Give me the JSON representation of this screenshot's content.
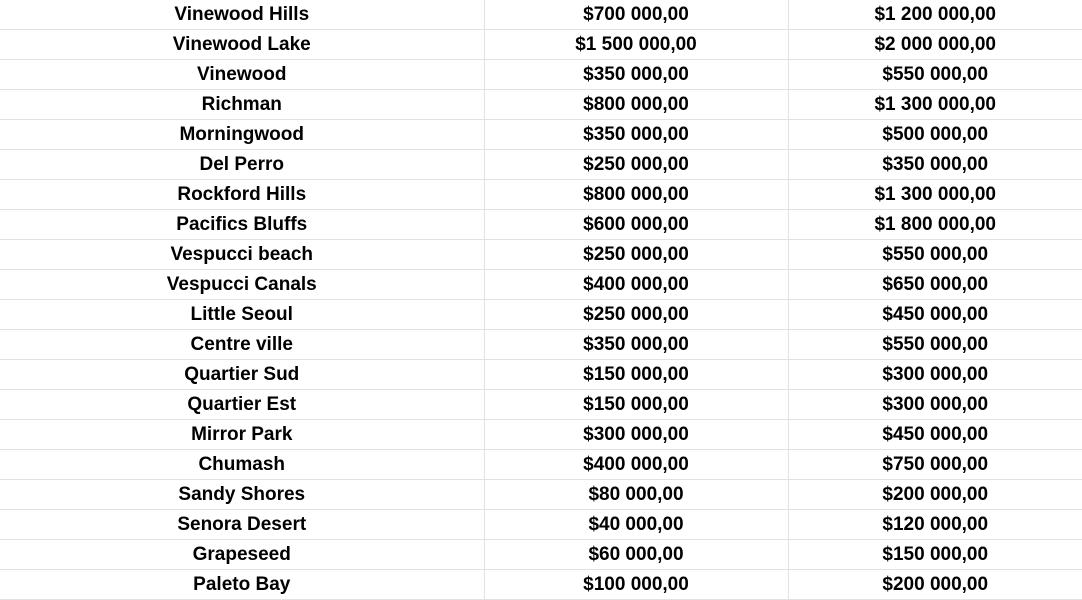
{
  "sheet": {
    "rows": [
      {
        "district": "Vinewood Hills",
        "min_price": "$700 000,00",
        "max_price": "$1 200 000,00"
      },
      {
        "district": "Vinewood Lake",
        "min_price": "$1 500 000,00",
        "max_price": "$2 000 000,00"
      },
      {
        "district": "Vinewood",
        "min_price": "$350 000,00",
        "max_price": "$550 000,00"
      },
      {
        "district": "Richman",
        "min_price": "$800 000,00",
        "max_price": "$1 300 000,00"
      },
      {
        "district": "Morningwood",
        "min_price": "$350 000,00",
        "max_price": "$500 000,00"
      },
      {
        "district": "Del Perro",
        "min_price": "$250 000,00",
        "max_price": "$350 000,00"
      },
      {
        "district": "Rockford Hills",
        "min_price": "$800 000,00",
        "max_price": "$1 300 000,00"
      },
      {
        "district": "Pacifics Bluffs",
        "min_price": "$600 000,00",
        "max_price": "$1 800 000,00"
      },
      {
        "district": "Vespucci beach",
        "min_price": "$250 000,00",
        "max_price": "$550 000,00"
      },
      {
        "district": "Vespucci Canals",
        "min_price": "$400 000,00",
        "max_price": "$650 000,00"
      },
      {
        "district": "Little Seoul",
        "min_price": "$250 000,00",
        "max_price": "$450 000,00"
      },
      {
        "district": "Centre ville",
        "min_price": "$350 000,00",
        "max_price": "$550 000,00"
      },
      {
        "district": "Quartier Sud",
        "min_price": "$150 000,00",
        "max_price": "$300 000,00"
      },
      {
        "district": "Quartier Est",
        "min_price": "$150 000,00",
        "max_price": "$300 000,00"
      },
      {
        "district": "Mirror Park",
        "min_price": "$300 000,00",
        "max_price": "$450 000,00"
      },
      {
        "district": "Chumash",
        "min_price": "$400 000,00",
        "max_price": "$750 000,00"
      },
      {
        "district": "Sandy Shores",
        "min_price": "$80 000,00",
        "max_price": "$200 000,00"
      },
      {
        "district": "Senora Desert",
        "min_price": "$40 000,00",
        "max_price": "$120 000,00"
      },
      {
        "district": "Grapeseed",
        "min_price": "$60 000,00",
        "max_price": "$150 000,00"
      },
      {
        "district": "Paleto Bay",
        "min_price": "$100 000,00",
        "max_price": "$200 000,00"
      }
    ]
  }
}
